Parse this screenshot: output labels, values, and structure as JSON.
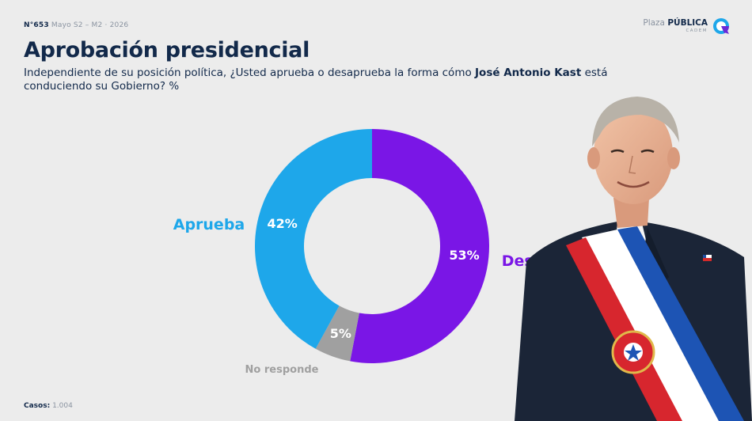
{
  "header": {
    "issue_number": "N°653",
    "issue_date": "Mayo S2 – M2 · 2026",
    "brand_prefix": "Plaza",
    "brand_name": "PÚBLICA",
    "brand_sub": "CADEM"
  },
  "title": "Aprobación presidencial",
  "question": {
    "before": "Independiente de su posición política, ¿Usted aprueba o desaprueba la forma cómo ",
    "name": "José Antonio Kast",
    "after": " está conduciendo su Gobierno? %"
  },
  "footer": {
    "cases_label": "Casos:",
    "cases_value": "1.004"
  },
  "colors": {
    "aprueba": "#1ea7ea",
    "desaprueba": "#7a16e6",
    "no_responde": "#a0a0a0",
    "navy": "#12294a"
  },
  "chart_data": {
    "type": "pie",
    "donut": true,
    "categories": [
      "Aprueba",
      "Desaprueba",
      "No responde"
    ],
    "values": [
      42,
      53,
      5
    ],
    "value_labels": [
      "42%",
      "53%",
      "5%"
    ],
    "colors": [
      "#1ea7ea",
      "#7a16e6",
      "#a0a0a0"
    ]
  }
}
